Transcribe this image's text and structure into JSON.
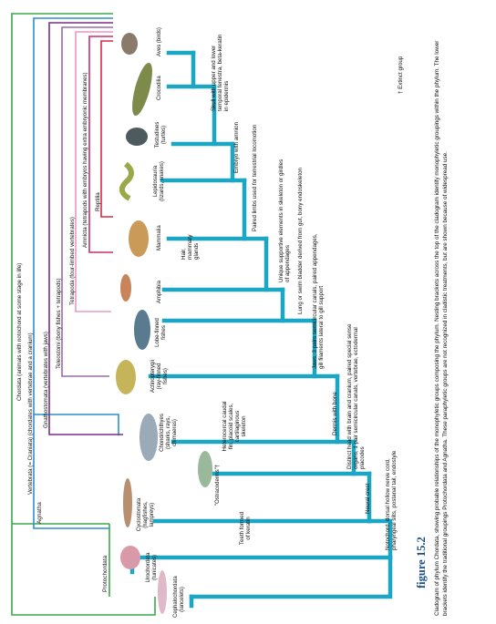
{
  "groups": {
    "chordata": "Chordata (animals with notochord at some stage in life)",
    "vertebrata": "Vertebrata (= Craniata) (chordates with vertebrae and a cranium)",
    "gnathostomata": "Gnathostomata (vertebrates with jaws)",
    "teleostomi": "Teleostomi (bony fishes + tetrapods)",
    "tetrapoda": "Tetrapoda (four-limbed vertebrates)",
    "amniota": "Amniota (tetrapods with embryos having extra embryonic membranes)",
    "reptilia": "Reptilia",
    "agnatha": "Agnatha",
    "protochordata": "Protochordata"
  },
  "taxa": [
    {
      "id": "aves",
      "label": "Aves (birds)"
    },
    {
      "id": "crocodilia",
      "label": "Crocodilia"
    },
    {
      "id": "testudines",
      "label": "Testudines (turtles)"
    },
    {
      "id": "lepidosauria",
      "label": "Lepidosauria (lizards, snakes)"
    },
    {
      "id": "mammalia",
      "label": "Mammalia"
    },
    {
      "id": "amphibia",
      "label": "Amphibia"
    },
    {
      "id": "lobefinned",
      "label": "Lobe-finned fishes"
    },
    {
      "id": "actinopterygii",
      "label": "Actinopterygii (ray-finned fishes)"
    },
    {
      "id": "chondrichthyes",
      "label": "Chondrichthyes (sharks, rays, chimaeras)"
    },
    {
      "id": "ostracoderms",
      "label": "\"Ostracoderms\"†"
    },
    {
      "id": "cyclostomata",
      "label": "Cyclostomata (hagfishes, lampreys)"
    },
    {
      "id": "urochordata",
      "label": "Urochordata (tunicates)"
    },
    {
      "id": "cephalochordata",
      "label": "Cephalochordata (lancelets)"
    }
  ],
  "characters": {
    "skull": "Skull with upper and lower temporal fenestra, beta-keratin in epidermis",
    "embryo": "Embryo with amnion",
    "paired_limbs": "Paired limbs used for terrestrial locomotion",
    "hair": "Hair, mammary glands",
    "unique_supportive": "Unique supportive elements in skeleton or girdles of appendages",
    "lung": "Lung or swim bladder derived from gut, bony endoskeleton",
    "jaws": "Jaws, 3 pairs semicircular canals, paired appendages, gill filaments lateral to gill support",
    "dermis": "Dermis with bone",
    "heterocercal": "Heterocercal caudal fin, placoid scales, cartilaginous skeleton",
    "distinct_head": "Distinct head with brain and cranium, paired special sense organs, 1 pair semicircular canals, vertebrae, ectodermal placodes",
    "neural_crest": "Neural crest",
    "teeth": "Teeth formed of keratin",
    "notochord": "Notochord, dorsal hollow nerve cord, pharyngeal slits, postanal tail, endostyle"
  },
  "legend": {
    "extinct": "† Extinct group"
  },
  "caption": {
    "title": "figure 15.2",
    "text": "Cladogram of phylum Chordata, showing probable relationships of the monophyletic groups composing the phylum. Nesting brackets across the top of the cladogram identify monophyletic groupings within the phylum. The lower brackets identify the traditional groupings Protochordata and Agnatha. These paraphyletic groups are not recognized in cladistic treatments, but are shown because of widespread use."
  },
  "colors": {
    "tree": "#1ba7c4",
    "chordata": "#3aa84a",
    "vertebrata": "#2a8fd0",
    "gnathostomata": "#7a2f86",
    "teleostomi": "#9a6aa8",
    "tetrapoda": "#e69ac4",
    "amniota": "#c8306e",
    "reptilia": "#d8284a",
    "caption_title": "#1a4f8a"
  }
}
